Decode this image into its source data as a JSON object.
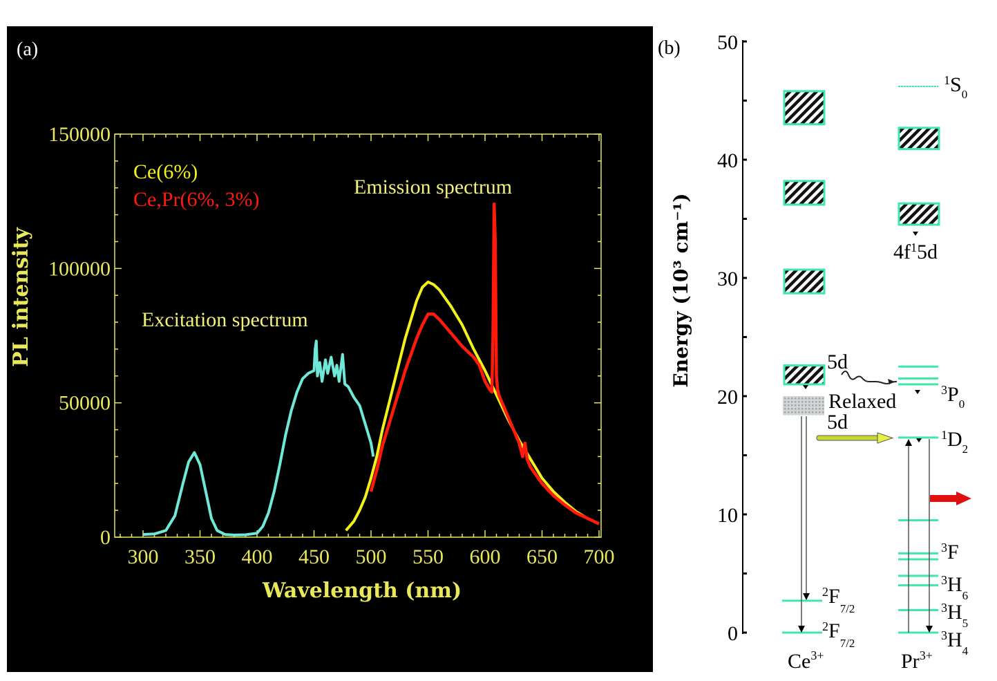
{
  "colors": {
    "background_a": "#000000",
    "axis_a": "#e8e85a",
    "excitation": "#6fe8d8",
    "ce": "#f2f21a",
    "cepr": "#ff1a0a",
    "level": "#3ee8a8",
    "transfer_arrow": "#c8d830",
    "emission_arrow": "#e01010"
  },
  "chart_data": [
    {
      "type": "line",
      "panel_label": "(a)",
      "xlabel": "Wavelength (nm)",
      "ylabel": "PL intensity",
      "xlim": [
        275,
        700
      ],
      "ylim": [
        0,
        150000
      ],
      "xticks": [
        300,
        350,
        400,
        450,
        500,
        550,
        600,
        650,
        700
      ],
      "yticks": [
        0,
        50000,
        100000,
        150000
      ],
      "grid": false,
      "legend": {
        "placement": "top-left",
        "entries": [
          "Ce(6%)",
          "Ce,Pr(6%, 3%)"
        ]
      },
      "annotations": [
        "Excitation spectrum",
        "Emission spectrum"
      ],
      "series": [
        {
          "label": "Excitation spectrum",
          "color": "#6fe8d8",
          "x": [
            300,
            310,
            320,
            328,
            335,
            340,
            345,
            350,
            355,
            360,
            365,
            372,
            380,
            390,
            400,
            405,
            410,
            415,
            420,
            425,
            430,
            435,
            440,
            445,
            450,
            451,
            452,
            453,
            455,
            457,
            460,
            462,
            465,
            468,
            470,
            472,
            475,
            477,
            480,
            485,
            490,
            495,
            500,
            502
          ],
          "y": [
            1000,
            1200,
            2500,
            8000,
            20000,
            28000,
            31500,
            27000,
            17000,
            7000,
            2500,
            1000,
            800,
            900,
            1500,
            4000,
            9000,
            17000,
            27000,
            38000,
            47000,
            54000,
            59000,
            61000,
            62000,
            70000,
            73000,
            60000,
            65000,
            58000,
            66000,
            61000,
            67000,
            60000,
            64000,
            58000,
            68000,
            57000,
            56000,
            52000,
            49000,
            42000,
            35000,
            30000
          ]
        },
        {
          "label": "Ce(6%)",
          "color": "#f2f21a",
          "x": [
            478,
            485,
            490,
            495,
            500,
            505,
            510,
            520,
            530,
            540,
            545,
            550,
            555,
            560,
            570,
            580,
            590,
            600,
            610,
            620,
            630,
            640,
            650,
            660,
            670,
            680,
            690,
            700
          ],
          "y": [
            2500,
            6000,
            10000,
            15000,
            22000,
            30000,
            40000,
            57000,
            74000,
            88000,
            93000,
            95000,
            94000,
            92000,
            86000,
            79000,
            70000,
            62000,
            53000,
            44000,
            36000,
            29000,
            22000,
            17000,
            13000,
            9500,
            7000,
            5000
          ]
        },
        {
          "label": "Ce,Pr(6%, 3%)",
          "color": "#ff1a0a",
          "x": [
            500,
            505,
            510,
            520,
            530,
            540,
            545,
            550,
            555,
            560,
            570,
            580,
            590,
            595,
            600,
            604,
            606,
            607,
            608,
            609,
            610,
            611,
            612,
            615,
            620,
            625,
            630,
            633,
            635,
            637,
            640,
            650,
            660,
            670,
            680,
            690,
            700
          ],
          "y": [
            17000,
            25000,
            34000,
            48000,
            62000,
            74000,
            79000,
            83000,
            83000,
            81000,
            76000,
            71000,
            67000,
            64000,
            58000,
            55000,
            54000,
            75000,
            124000,
            110000,
            60000,
            55000,
            53000,
            50000,
            45000,
            40000,
            35000,
            30000,
            35000,
            29000,
            26000,
            20000,
            15500,
            12000,
            9000,
            7000,
            5000
          ]
        }
      ]
    },
    {
      "type": "energy-level-diagram",
      "panel_label": "(b)",
      "ylabel": "Energy (10³ cm⁻¹)",
      "ylim": [
        0,
        50
      ],
      "yticks": [
        0,
        10,
        20,
        30,
        40,
        50
      ],
      "ions": [
        "Ce³⁺",
        "Pr³⁺"
      ],
      "ce_bands": [
        [
          43,
          45.8
        ],
        [
          36.2,
          38.2
        ],
        [
          28.7,
          30.7
        ],
        [
          21,
          22.6
        ]
      ],
      "ce_relaxed_band": [
        18.4,
        20
      ],
      "ce_levels": [
        2.7,
        0
      ],
      "pr_bands": [
        [
          40.9,
          42.7
        ],
        [
          34.5,
          36.3
        ]
      ],
      "pr_levels": [
        46.2,
        22.5,
        21.5,
        21.0,
        16.5,
        9.5,
        6.7,
        6.2,
        4.8,
        4.0,
        1.9,
        0
      ],
      "labels": {
        "ce_5d": "5d",
        "relaxed": "Relaxed",
        "relaxed_5d": "5d",
        "ce_f1": {
          "main": "F",
          "sup": "2",
          "sub": "7/2"
        },
        "ce_f2": {
          "main": "F",
          "sup": "2",
          "sub": "7/2"
        },
        "pr_1s0": {
          "main": "S",
          "sup": "1",
          "sub": "0"
        },
        "pr_4f5d": {
          "main": "4f",
          "sup": "1",
          "rest": "5d"
        },
        "pr_3p0": {
          "main": "P",
          "sup": "3",
          "sub": "0"
        },
        "pr_1d2": {
          "main": "D",
          "sup": "1",
          "sub": "2"
        },
        "pr_3f": {
          "main": "F",
          "sup": "3"
        },
        "pr_3h6": {
          "main": "H",
          "sup": "3",
          "sub": "6"
        },
        "pr_3h5": {
          "main": "H",
          "sup": "3",
          "sub": "5"
        },
        "pr_3h4": {
          "main": "H",
          "sup": "3",
          "sub": "4"
        },
        "ce_ion": {
          "main": "Ce",
          "sup": "3+"
        },
        "pr_ion": {
          "main": "Pr",
          "sup": "3+"
        }
      }
    }
  ]
}
